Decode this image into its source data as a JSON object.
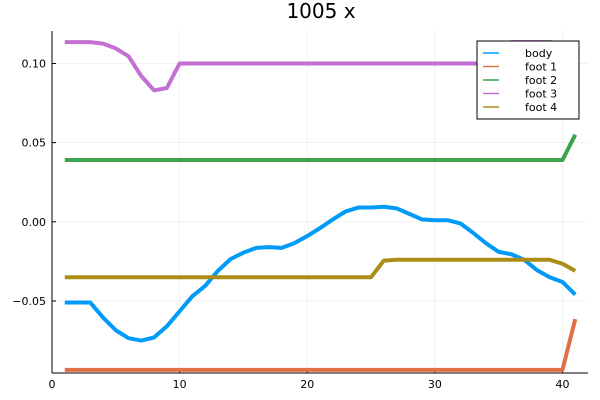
{
  "chart_data": {
    "type": "line",
    "title": "1005 x",
    "xlabel": "",
    "ylabel": "",
    "xlim": [
      0,
      42
    ],
    "ylim": [
      -0.0955,
      0.1205
    ],
    "grid": true,
    "legend_position": "top-right",
    "x_ticks": [
      0,
      10,
      20,
      30,
      40
    ],
    "x_tick_labels": [
      "0",
      "10",
      "20",
      "30",
      "40"
    ],
    "y_ticks": [
      0.1,
      0.05,
      0.0,
      -0.05
    ],
    "y_tick_labels": [
      "0.10",
      "0.05",
      "0.00",
      "−0.05"
    ],
    "x": [
      1,
      2,
      3,
      4,
      5,
      6,
      7,
      8,
      9,
      10,
      11,
      12,
      13,
      14,
      15,
      16,
      17,
      18,
      19,
      20,
      21,
      22,
      23,
      24,
      25,
      26,
      27,
      28,
      29,
      30,
      31,
      32,
      33,
      34,
      35,
      36,
      37,
      38,
      39,
      40,
      41
    ],
    "series": [
      {
        "name": "body",
        "color": "#009af9",
        "values": [
          -0.051,
          -0.051,
          -0.051,
          -0.0605,
          -0.0685,
          -0.0735,
          -0.075,
          -0.073,
          -0.066,
          -0.0565,
          -0.047,
          -0.0405,
          -0.031,
          -0.0235,
          -0.0195,
          -0.0165,
          -0.016,
          -0.0165,
          -0.0135,
          -0.009,
          -0.004,
          0.0015,
          0.0065,
          0.009,
          0.009,
          0.0095,
          0.0085,
          0.005,
          0.0015,
          0.001,
          0.001,
          -0.001,
          -0.007,
          -0.0135,
          -0.019,
          -0.0205,
          -0.024,
          -0.0305,
          -0.035,
          -0.038,
          -0.046
        ]
      },
      {
        "name": "foot 1",
        "color": "#e26f46",
        "values": [
          -0.0935,
          -0.0935,
          -0.0935,
          -0.0935,
          -0.0935,
          -0.0935,
          -0.0935,
          -0.0935,
          -0.0935,
          -0.0935,
          -0.0935,
          -0.0935,
          -0.0935,
          -0.0935,
          -0.0935,
          -0.0935,
          -0.0935,
          -0.0935,
          -0.0935,
          -0.0935,
          -0.0935,
          -0.0935,
          -0.0935,
          -0.0935,
          -0.0935,
          -0.0935,
          -0.0935,
          -0.0935,
          -0.0935,
          -0.0935,
          -0.0935,
          -0.0935,
          -0.0935,
          -0.0935,
          -0.0935,
          -0.0935,
          -0.0935,
          -0.0935,
          -0.0935,
          -0.0935,
          -0.0615
        ]
      },
      {
        "name": "foot 2",
        "color": "#3da44d",
        "values": [
          0.039,
          0.039,
          0.039,
          0.039,
          0.039,
          0.039,
          0.039,
          0.039,
          0.039,
          0.039,
          0.039,
          0.039,
          0.039,
          0.039,
          0.039,
          0.039,
          0.039,
          0.039,
          0.039,
          0.039,
          0.039,
          0.039,
          0.039,
          0.039,
          0.039,
          0.039,
          0.039,
          0.039,
          0.039,
          0.039,
          0.039,
          0.039,
          0.039,
          0.039,
          0.039,
          0.039,
          0.039,
          0.039,
          0.039,
          0.039,
          0.055
        ]
      },
      {
        "name": "foot 3",
        "color": "#c271d2",
        "values": [
          0.1135,
          0.1135,
          0.1135,
          0.1125,
          0.1095,
          0.1045,
          0.092,
          0.083,
          0.0845,
          0.1,
          0.1,
          0.1,
          0.1,
          0.1,
          0.1,
          0.1,
          0.1,
          0.1,
          0.1,
          0.1,
          0.1,
          0.1,
          0.1,
          0.1,
          0.1,
          0.1,
          0.1,
          0.1,
          0.1,
          0.1,
          0.1,
          0.1,
          0.1,
          0.1,
          0.1,
          0.1135,
          0.1135,
          0.1135,
          0.1135,
          0.1125,
          0.097
        ]
      },
      {
        "name": "foot 4",
        "color": "#ac8d18",
        "values": [
          -0.035,
          -0.035,
          -0.035,
          -0.035,
          -0.035,
          -0.035,
          -0.035,
          -0.035,
          -0.035,
          -0.035,
          -0.035,
          -0.035,
          -0.035,
          -0.035,
          -0.035,
          -0.035,
          -0.035,
          -0.035,
          -0.035,
          -0.035,
          -0.035,
          -0.035,
          -0.035,
          -0.035,
          -0.035,
          -0.0245,
          -0.024,
          -0.024,
          -0.024,
          -0.024,
          -0.024,
          -0.024,
          -0.024,
          -0.024,
          -0.024,
          -0.024,
          -0.024,
          -0.024,
          -0.024,
          -0.0265,
          -0.031
        ]
      }
    ]
  }
}
